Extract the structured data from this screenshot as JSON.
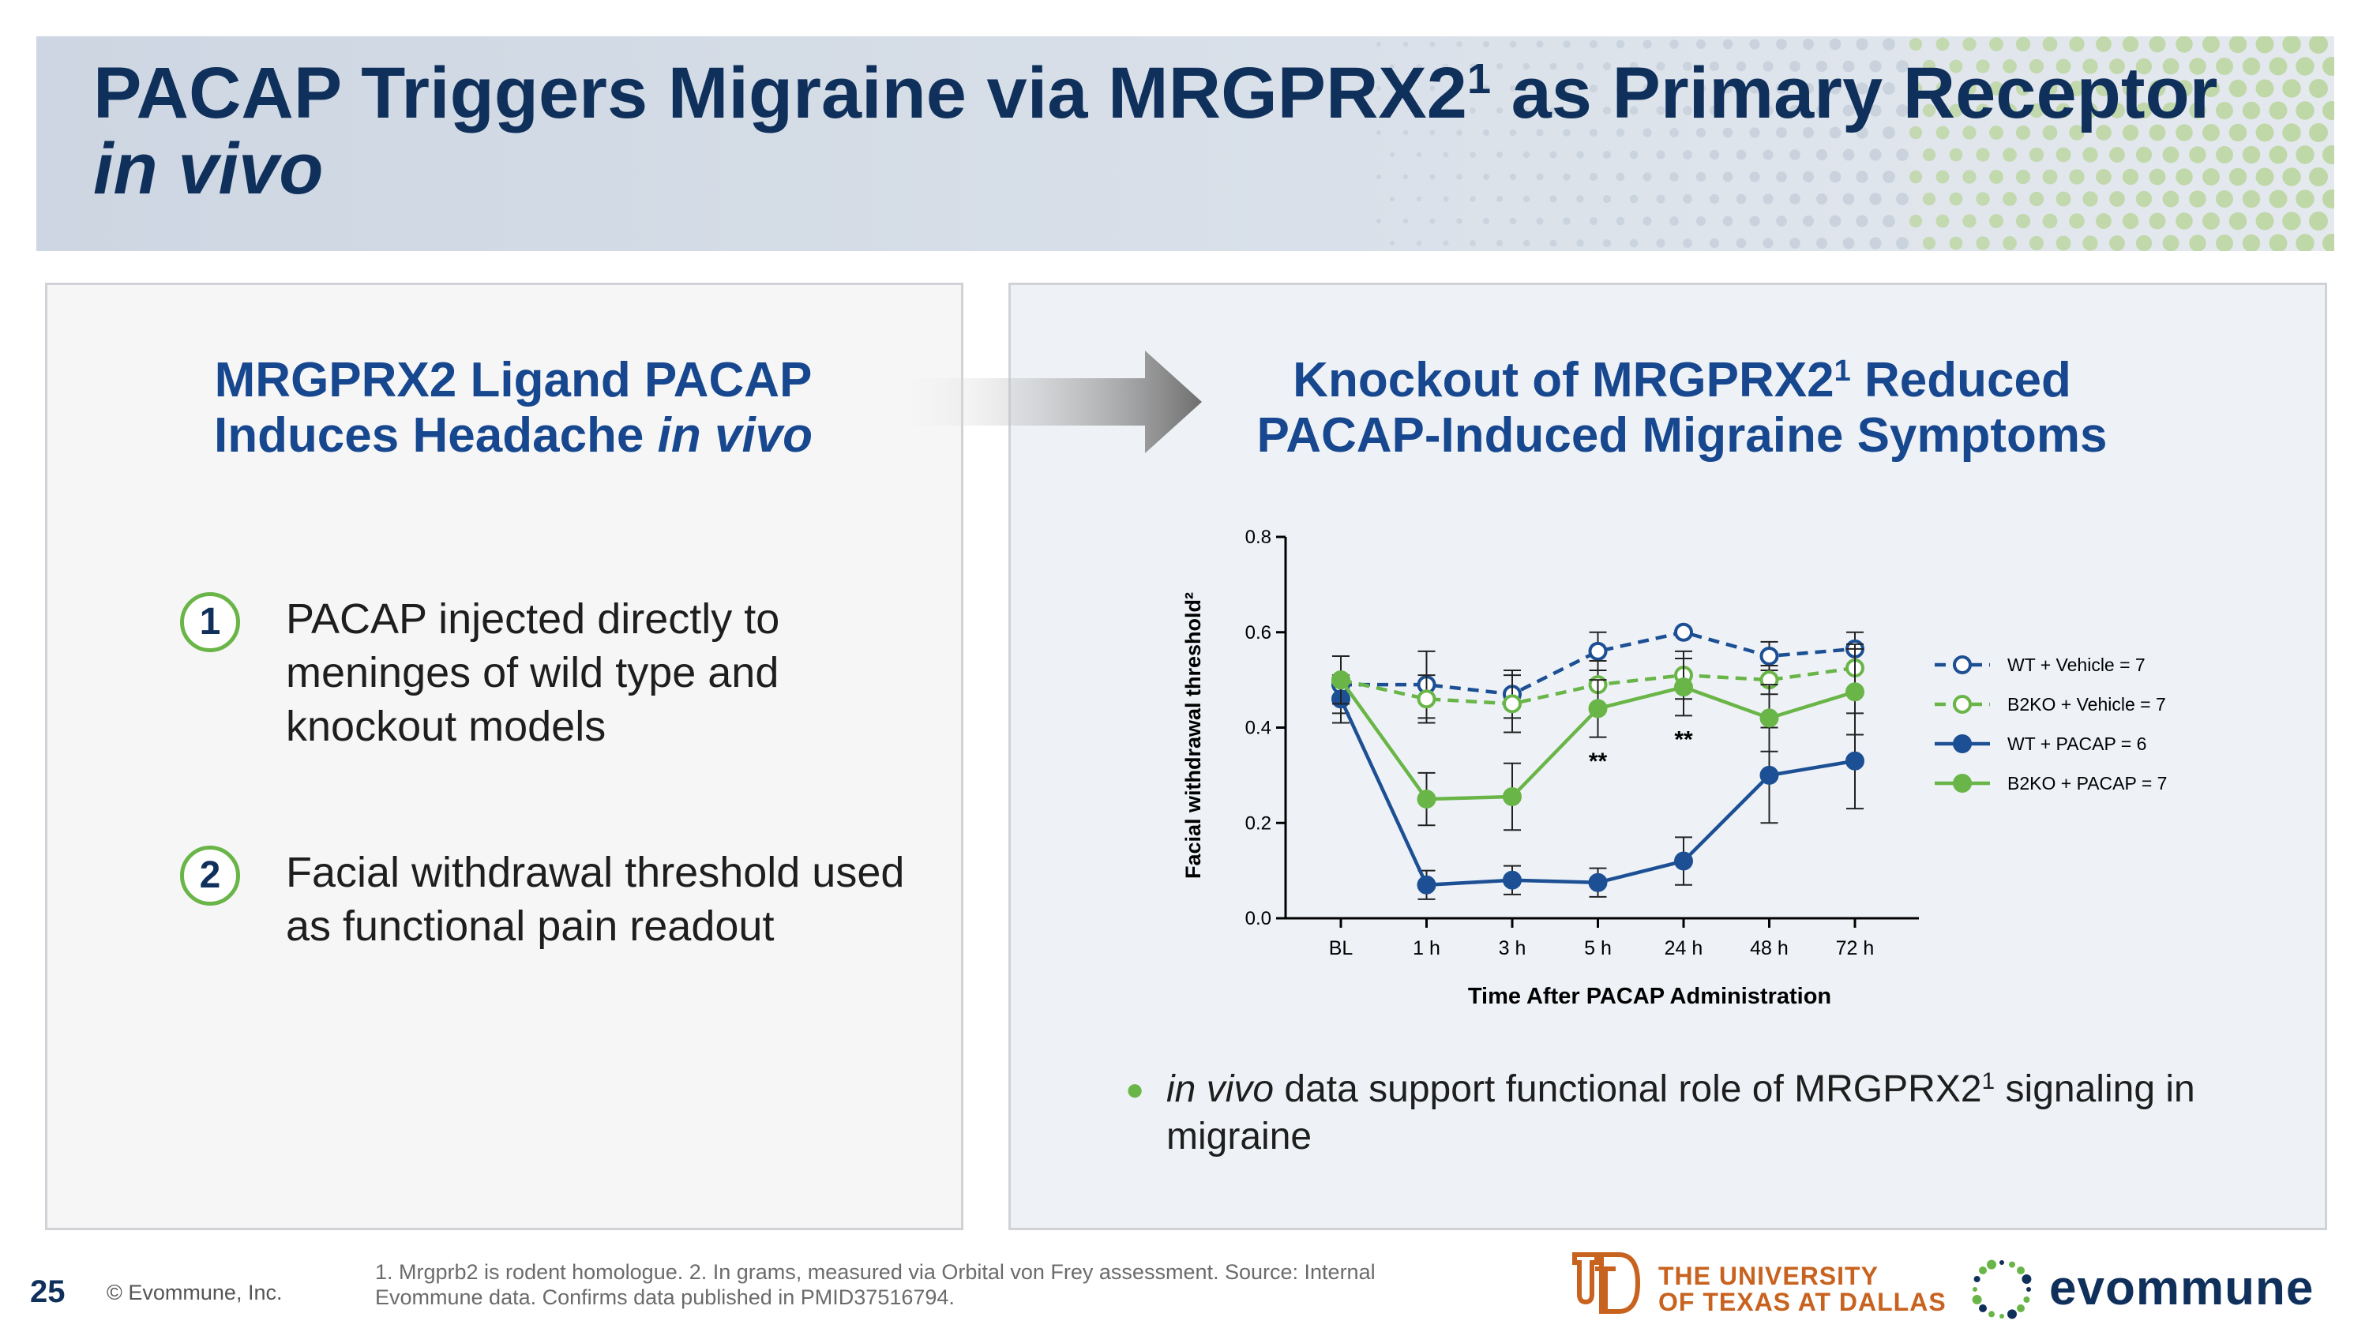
{
  "slide": {
    "title_main": "PACAP Triggers Migraine via MRGPRX2",
    "title_sup": "1",
    "title_tail": " as Primary Receptor",
    "title_italic": "in vivo"
  },
  "left_panel": {
    "heading_line1": "MRGPRX2 Ligand PACAP",
    "heading_line2": "Induces Headache ",
    "heading_line2_italic": "in vivo",
    "steps": [
      {
        "number": "1",
        "text": "PACAP injected directly to meninges of wild type and knockout models"
      },
      {
        "number": "2",
        "text": "Facial withdrawal threshold used as functional pain readout"
      }
    ]
  },
  "right_panel": {
    "heading_line1": "Knockout of MRGPRX2",
    "heading_sup": "1",
    "heading_line1_tail": " Reduced",
    "heading_line2": "PACAP-Induced Migraine Symptoms",
    "bullet_italic": "in vivo",
    "bullet_text": " data support functional role of MRGPRX2",
    "bullet_sup": "1",
    "bullet_tail": " signaling in migraine"
  },
  "chart_data": {
    "type": "line",
    "title": "",
    "xlabel": "Time After PACAP Administration",
    "ylabel": "Facial withdrawal threshold²",
    "categories": [
      "BL",
      "1 h",
      "3 h",
      "5 h",
      "24 h",
      "48 h",
      "72 h"
    ],
    "ylim": [
      0,
      0.8
    ],
    "yticks": [
      "0.0",
      "0.2",
      "0.4",
      "0.6",
      "0.8"
    ],
    "grid": false,
    "legend_position": "right",
    "series": [
      {
        "name": "WT + Vehicle = 7",
        "color": "#1c4f93",
        "dashed": true,
        "filled": false,
        "values": [
          0.49,
          0.49,
          0.47,
          0.56,
          0.6,
          0.55,
          0.565
        ],
        "errors": [
          0.06,
          0.07,
          0.05,
          0.04,
          0.0,
          0.03,
          0.035
        ]
      },
      {
        "name": "B2KO + Vehicle = 7",
        "color": "#6ab548",
        "dashed": true,
        "filled": false,
        "values": [
          0.5,
          0.46,
          0.45,
          0.49,
          0.51,
          0.5,
          0.525
        ],
        "errors": [
          0.05,
          0.05,
          0.06,
          0.05,
          0.05,
          0.03,
          0.05
        ]
      },
      {
        "name": "WT + PACAP = 6",
        "color": "#1c4f93",
        "dashed": false,
        "filled": true,
        "values": [
          0.46,
          0.07,
          0.08,
          0.075,
          0.12,
          0.3,
          0.33
        ],
        "errors": [
          0.05,
          0.03,
          0.03,
          0.03,
          0.05,
          0.1,
          0.1
        ]
      },
      {
        "name": "B2KO + PACAP = 7",
        "color": "#6ab548",
        "dashed": false,
        "filled": true,
        "values": [
          0.5,
          0.25,
          0.255,
          0.44,
          0.485,
          0.42,
          0.475
        ],
        "errors": [
          0.05,
          0.055,
          0.07,
          0.06,
          0.06,
          0.07,
          0.09
        ]
      }
    ],
    "annotations": [
      {
        "category": "5 h",
        "value": 0.33,
        "text": "**"
      },
      {
        "category": "24 h",
        "value": 0.375,
        "text": "**"
      }
    ]
  },
  "footer": {
    "page_number": "25",
    "copyright": "© Evommune, Inc.",
    "footnote": "1. Mrgprb2 is rodent homologue.  2. In grams, measured via Orbital von Frey assessment.  Source: Internal Evommune data. Confirms data published in PMID37516794.",
    "utd_line1": "THE UNIVERSITY",
    "utd_line2": "OF TEXAS AT DALLAS",
    "brand": "evommune"
  }
}
